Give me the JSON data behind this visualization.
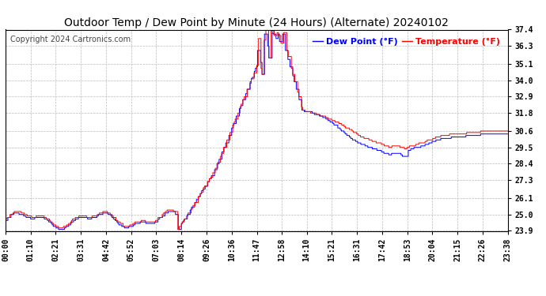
{
  "title": "Outdoor Temp / Dew Point by Minute (24 Hours) (Alternate) 20240102",
  "copyright": "Copyright 2024 Cartronics.com",
  "legend_dew": "Dew Point (°F)",
  "legend_temp": "Temperature (°F)",
  "ylabel_right_ticks": [
    23.9,
    25.0,
    26.1,
    27.3,
    28.4,
    29.5,
    30.6,
    31.8,
    32.9,
    34.0,
    35.1,
    36.3,
    37.4
  ],
  "ylim": [
    23.9,
    37.4
  ],
  "color_dew": "#0000ff",
  "color_temp": "#ff0000",
  "color_grid": "#bbbbbb",
  "bg_color": "#ffffff",
  "title_fontsize": 10,
  "copyright_fontsize": 7,
  "legend_fontsize": 8,
  "tick_fontsize": 7,
  "x_tick_labels": [
    "00:00",
    "01:10",
    "02:21",
    "03:31",
    "04:42",
    "05:52",
    "07:03",
    "08:14",
    "09:26",
    "10:36",
    "11:47",
    "12:58",
    "14:10",
    "15:21",
    "16:31",
    "17:42",
    "18:53",
    "20:04",
    "21:15",
    "22:26",
    "23:38"
  ],
  "n_minutes": 1440
}
